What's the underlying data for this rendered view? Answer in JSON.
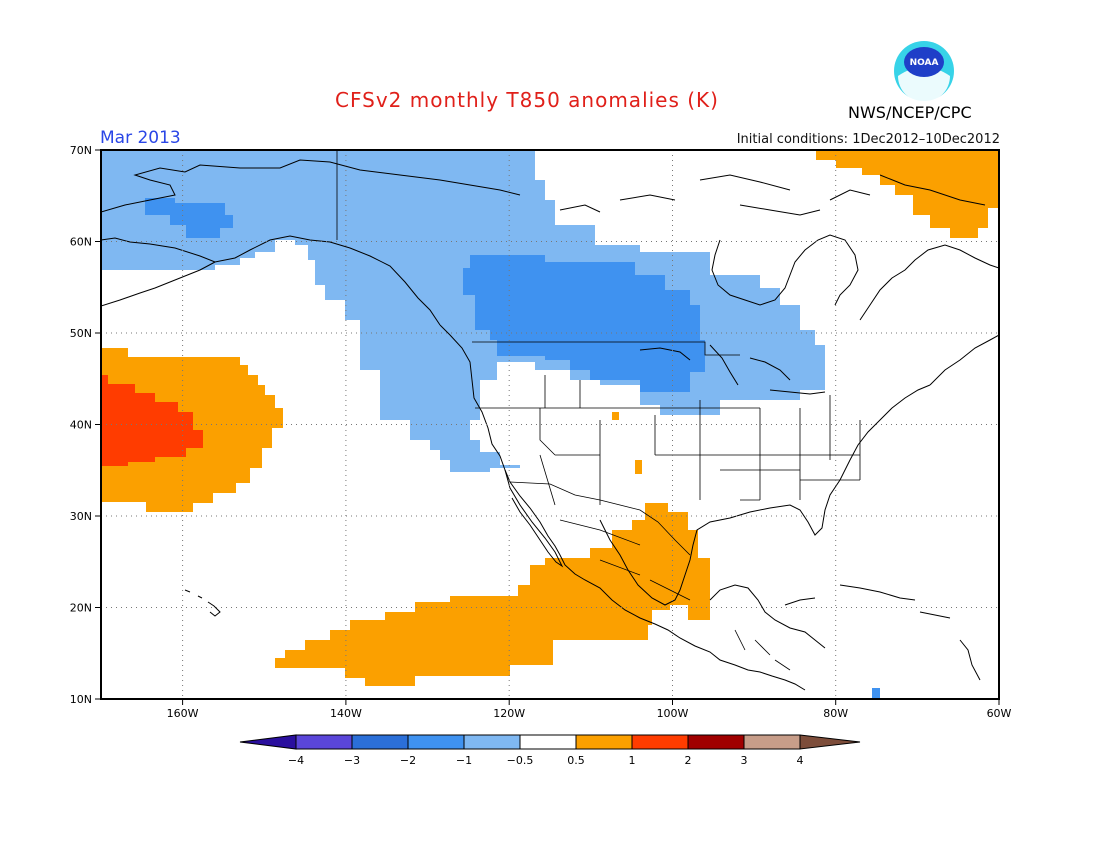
{
  "header": {
    "title": "CFSv2 monthly T850 anomalies (K)",
    "month": "Mar 2013",
    "initial_conditions": "Initial conditions: 1Dec2012–10Dec2012",
    "agency": "NWS/NCEP/CPC",
    "logo_text": "NOAA",
    "logo_icon": "noaa-logo-icon"
  },
  "map": {
    "lon_range": [
      -170,
      -60
    ],
    "lat_range": [
      10,
      70
    ],
    "lat_labels": [
      "70N",
      "60N",
      "50N",
      "40N",
      "30N",
      "20N",
      "10N"
    ],
    "lon_labels": [
      "160W",
      "140W",
      "120W",
      "100W",
      "80W",
      "60W"
    ]
  },
  "colorbar": {
    "labels": [
      "−4",
      "−3",
      "−2",
      "−1",
      "−0.5",
      "0.5",
      "1",
      "2",
      "3",
      "4"
    ],
    "colors": [
      "#2a0f9e",
      "#5a46d9",
      "#2b6fd8",
      "#3f92f0",
      "#7fb8f2",
      "#ffffff",
      "#fba000",
      "#ff3c00",
      "#a00000",
      "#c79d89",
      "#7d4d3a"
    ]
  },
  "anomaly_colors": {
    "light_blue": "#7fb8f2",
    "blue": "#3f92f0",
    "orange": "#fba000",
    "red_orange": "#ff3c00"
  }
}
